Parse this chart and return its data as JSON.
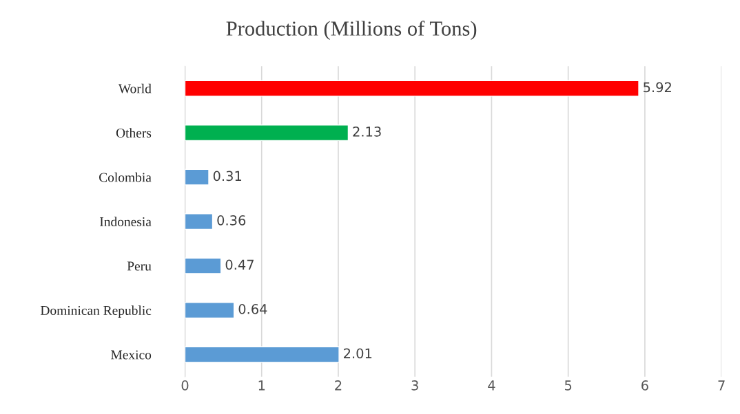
{
  "chart_data": {
    "type": "bar",
    "orientation": "horizontal",
    "title": "Production (Millions of Tons)",
    "categories": [
      "World",
      "Others",
      "Colombia",
      "Indonesia",
      "Peru",
      "Dominican Republic",
      "Mexico"
    ],
    "values": [
      5.92,
      2.13,
      0.31,
      0.36,
      0.47,
      0.64,
      2.01
    ],
    "colors": [
      "#ff0000",
      "#00b050",
      "#5b9bd5",
      "#5b9bd5",
      "#5b9bd5",
      "#5b9bd5",
      "#5b9bd5"
    ],
    "xlim": [
      0,
      7
    ],
    "xticks": [
      0,
      1,
      2,
      3,
      4,
      5,
      6,
      7
    ],
    "grid": "x",
    "data_labels": true
  }
}
